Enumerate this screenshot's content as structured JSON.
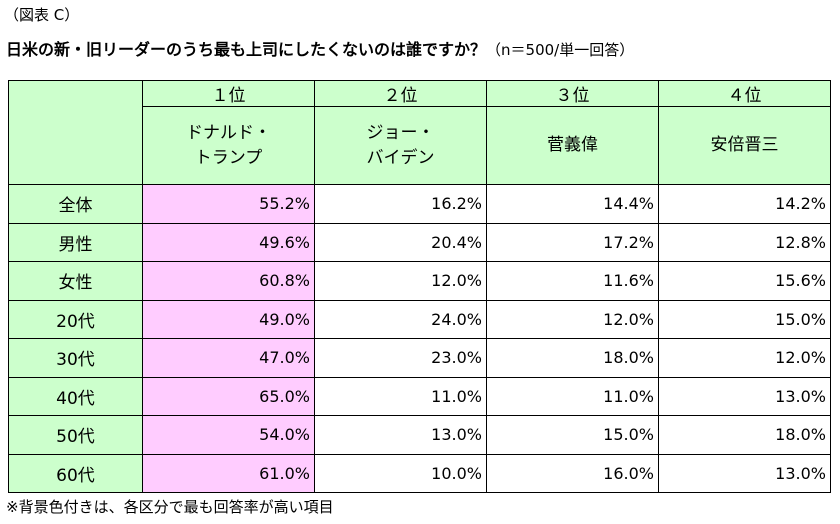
{
  "figure_label": "（図表 C）",
  "title": "日米の新・旧リーダーのうち最も上司にしたくないのは誰ですか？",
  "title_note": "（n＝500/単一回答）",
  "table": {
    "ranks": [
      "１位",
      "２位",
      "３位",
      "４位"
    ],
    "names": [
      {
        "line1": "ドナルド・",
        "line2": "トランプ"
      },
      {
        "line1": "ジョー・",
        "line2": "バイデン"
      },
      {
        "line1": "菅義偉",
        "line2": ""
      },
      {
        "line1": "安倍晋三",
        "line2": ""
      }
    ],
    "rows": [
      {
        "label": "全体",
        "values": [
          "55.2%",
          "16.2%",
          "14.4%",
          "14.2%"
        ]
      },
      {
        "label": "男性",
        "values": [
          "49.6%",
          "20.4%",
          "17.2%",
          "12.8%"
        ]
      },
      {
        "label": "女性",
        "values": [
          "60.8%",
          "12.0%",
          "11.6%",
          "15.6%"
        ]
      },
      {
        "label": "20代",
        "values": [
          "49.0%",
          "24.0%",
          "12.0%",
          "15.0%"
        ]
      },
      {
        "label": "30代",
        "values": [
          "47.0%",
          "23.0%",
          "18.0%",
          "12.0%"
        ]
      },
      {
        "label": "40代",
        "values": [
          "65.0%",
          "11.0%",
          "11.0%",
          "13.0%"
        ]
      },
      {
        "label": "50代",
        "values": [
          "54.0%",
          "13.0%",
          "15.0%",
          "18.0%"
        ]
      },
      {
        "label": "60代",
        "values": [
          "61.0%",
          "10.0%",
          "16.0%",
          "13.0%"
        ]
      }
    ],
    "highlight_column": 0
  },
  "colors": {
    "header_bg": "#ccffcc",
    "highlight_bg": "#ffccff"
  },
  "footnote": "※背景色付きは、各区分で最も回答率が高い項目"
}
